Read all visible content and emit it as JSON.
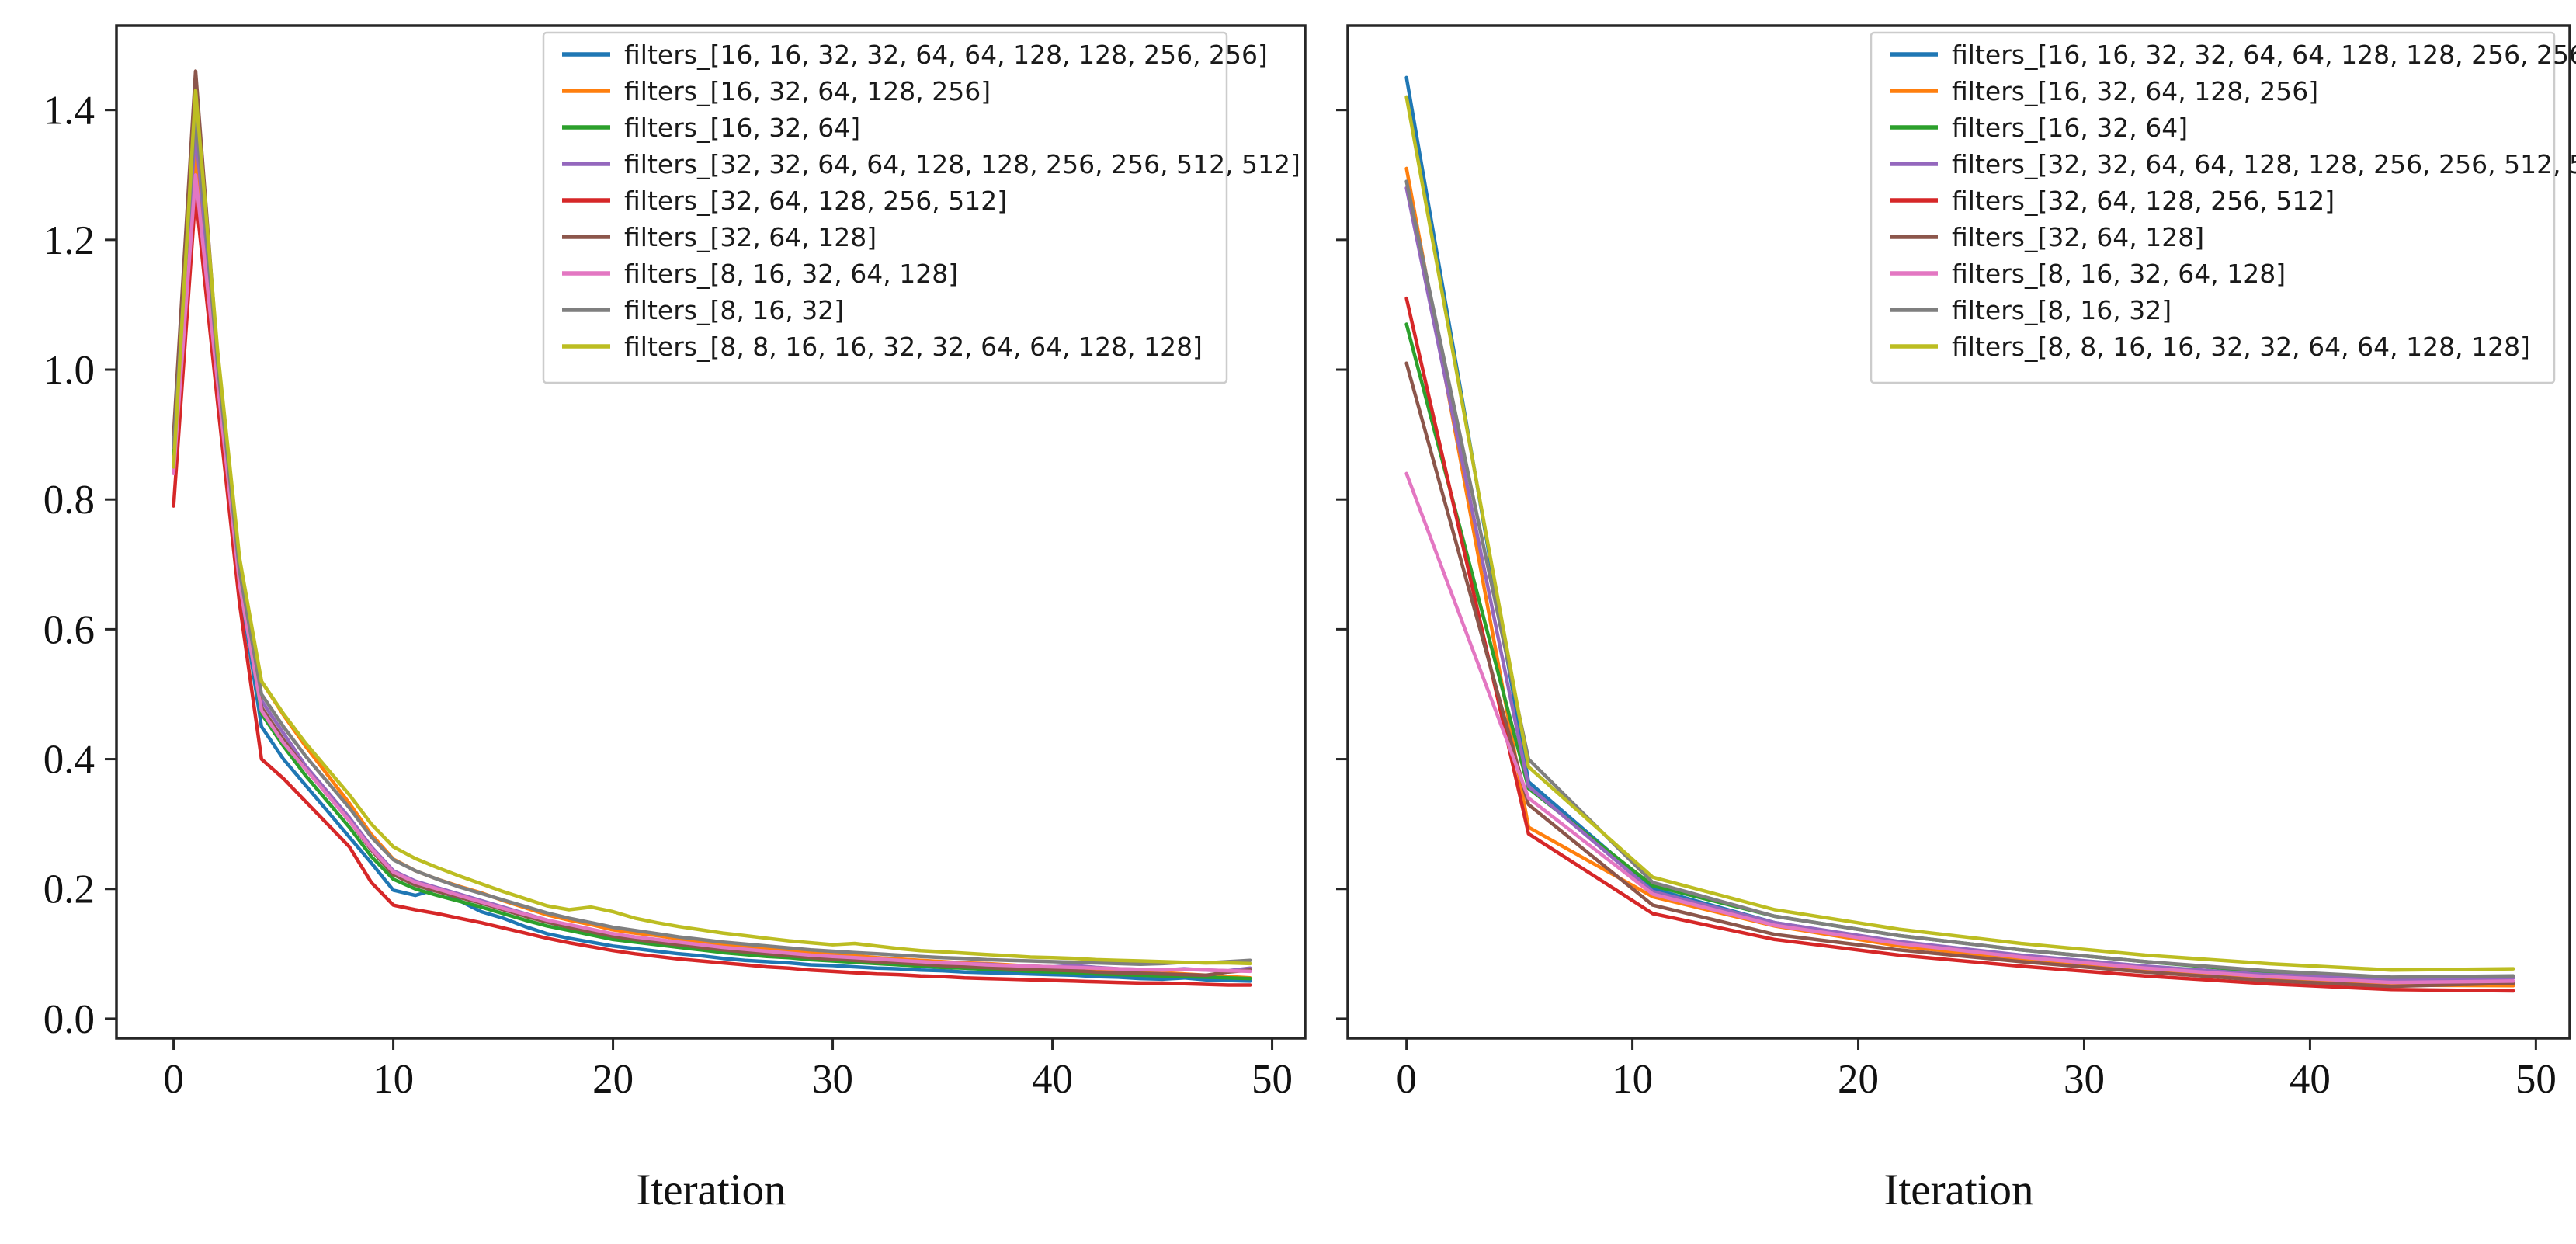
{
  "chart_data": {
    "type": "line",
    "title": "",
    "xlabel": "Iteration",
    "ylabel": "",
    "xlim": [
      -2.6,
      51.5
    ],
    "ylim": [
      -0.03,
      1.53
    ],
    "grid": false,
    "x_ticks": [
      0,
      10,
      20,
      30,
      40,
      50
    ],
    "y_ticks": [
      0.0,
      0.2,
      0.4,
      0.6,
      0.8,
      1.0,
      1.2,
      1.4
    ],
    "y_tick_labels": [
      "0.0",
      "0.2",
      "0.4",
      "0.6",
      "0.8",
      "1.0",
      "1.2",
      "1.4"
    ],
    "legend": {
      "position": "upper right",
      "labels": [
        "filters_[16, 16, 32, 32, 64, 64, 128, 128, 256, 256]",
        "filters_[16, 32, 64, 128, 256]",
        "filters_[16, 32, 64]",
        "filters_[32, 32, 64, 64, 128, 128, 256, 256, 512, 512]",
        "filters_[32, 64, 128, 256, 512]",
        "filters_[32, 64, 128]",
        "filters_[8, 16, 32, 64, 128]",
        "filters_[8, 16, 32]",
        "filters_[8, 8, 16, 16, 32, 32, 64, 64, 128, 128]"
      ],
      "colors": [
        "#1f77b4",
        "#ff7f0e",
        "#2ca02c",
        "#9467bd",
        "#d62728",
        "#8c564b",
        "#e377c2",
        "#7f7f7f",
        "#bcbd22"
      ]
    },
    "panels": [
      {
        "name": "left",
        "x": [
          0,
          1,
          2,
          3,
          4,
          5,
          6,
          7,
          8,
          9,
          10,
          11,
          12,
          13,
          14,
          15,
          16,
          17,
          18,
          19,
          20,
          21,
          22,
          23,
          24,
          25,
          26,
          27,
          28,
          29,
          30,
          31,
          32,
          33,
          34,
          35,
          36,
          37,
          38,
          39,
          40,
          41,
          42,
          43,
          44,
          45,
          46,
          47,
          48,
          49
        ],
        "series": [
          {
            "legend_index": 0,
            "values": [
              0.88,
              1.4,
              0.99,
              0.67,
              0.45,
              0.4,
              0.36,
              0.32,
              0.28,
              0.24,
              0.198,
              0.19,
              0.2,
              0.182,
              0.165,
              0.155,
              0.142,
              0.131,
              0.124,
              0.118,
              0.112,
              0.108,
              0.104,
              0.1,
              0.097,
              0.093,
              0.09,
              0.088,
              0.086,
              0.083,
              0.082,
              0.08,
              0.078,
              0.077,
              0.075,
              0.074,
              0.072,
              0.071,
              0.07,
              0.069,
              0.068,
              0.067,
              0.065,
              0.064,
              0.062,
              0.061,
              0.063,
              0.06,
              0.059,
              0.058
            ]
          },
          {
            "legend_index": 1,
            "values": [
              0.86,
              1.33,
              1.01,
              0.7,
              0.52,
              0.468,
              0.42,
              0.376,
              0.332,
              0.284,
              0.246,
              0.228,
              0.215,
              0.204,
              0.194,
              0.182,
              0.171,
              0.16,
              0.152,
              0.145,
              0.137,
              0.132,
              0.128,
              0.123,
              0.119,
              0.114,
              0.111,
              0.108,
              0.104,
              0.101,
              0.099,
              0.097,
              0.094,
              0.092,
              0.09,
              0.088,
              0.086,
              0.085,
              0.083,
              0.081,
              0.08,
              0.078,
              0.077,
              0.075,
              0.073,
              0.071,
              0.069,
              0.067,
              0.065,
              0.063
            ]
          },
          {
            "legend_index": 2,
            "values": [
              0.87,
              1.38,
              1.0,
              0.68,
              0.47,
              0.42,
              0.375,
              0.335,
              0.295,
              0.25,
              0.215,
              0.2,
              0.19,
              0.181,
              0.172,
              0.162,
              0.152,
              0.143,
              0.136,
              0.129,
              0.122,
              0.118,
              0.114,
              0.11,
              0.106,
              0.102,
              0.099,
              0.096,
              0.094,
              0.091,
              0.089,
              0.087,
              0.085,
              0.083,
              0.081,
              0.079,
              0.078,
              0.076,
              0.075,
              0.073,
              0.072,
              0.071,
              0.069,
              0.068,
              0.067,
              0.066,
              0.065,
              0.064,
              0.063,
              0.062
            ]
          },
          {
            "legend_index": 3,
            "values": [
              0.89,
              1.37,
              1.0,
              0.69,
              0.49,
              0.44,
              0.39,
              0.35,
              0.31,
              0.265,
              0.228,
              0.212,
              0.202,
              0.192,
              0.182,
              0.172,
              0.162,
              0.152,
              0.144,
              0.137,
              0.13,
              0.125,
              0.121,
              0.117,
              0.113,
              0.109,
              0.106,
              0.103,
              0.1,
              0.097,
              0.095,
              0.093,
              0.091,
              0.089,
              0.088,
              0.086,
              0.085,
              0.084,
              0.082,
              0.081,
              0.08,
              0.082,
              0.079,
              0.077,
              0.076,
              0.075,
              0.077,
              0.075,
              0.074,
              0.078
            ]
          },
          {
            "legend_index": 4,
            "values": [
              0.79,
              1.27,
              0.95,
              0.64,
              0.4,
              0.37,
              0.335,
              0.3,
              0.265,
              0.21,
              0.175,
              0.168,
              0.162,
              0.155,
              0.148,
              0.14,
              0.132,
              0.124,
              0.117,
              0.111,
              0.105,
              0.1,
              0.096,
              0.092,
              0.089,
              0.086,
              0.083,
              0.08,
              0.078,
              0.075,
              0.073,
              0.071,
              0.069,
              0.068,
              0.066,
              0.065,
              0.063,
              0.062,
              0.061,
              0.06,
              0.059,
              0.058,
              0.057,
              0.056,
              0.055,
              0.055,
              0.054,
              0.053,
              0.052,
              0.052
            ]
          },
          {
            "legend_index": 5,
            "values": [
              0.9,
              1.46,
              1.02,
              0.7,
              0.48,
              0.43,
              0.385,
              0.345,
              0.305,
              0.26,
              0.222,
              0.206,
              0.196,
              0.187,
              0.178,
              0.168,
              0.158,
              0.149,
              0.141,
              0.134,
              0.127,
              0.122,
              0.118,
              0.114,
              0.11,
              0.106,
              0.103,
              0.1,
              0.097,
              0.094,
              0.092,
              0.09,
              0.088,
              0.086,
              0.084,
              0.082,
              0.08,
              0.079,
              0.077,
              0.076,
              0.075,
              0.074,
              0.072,
              0.071,
              0.07,
              0.069,
              0.068,
              0.067,
              0.072,
              0.075
            ]
          },
          {
            "legend_index": 6,
            "values": [
              0.84,
              1.3,
              0.98,
              0.67,
              0.475,
              0.425,
              0.385,
              0.345,
              0.305,
              0.262,
              0.226,
              0.21,
              0.2,
              0.19,
              0.18,
              0.17,
              0.161,
              0.152,
              0.145,
              0.138,
              0.131,
              0.126,
              0.122,
              0.118,
              0.114,
              0.11,
              0.107,
              0.104,
              0.101,
              0.098,
              0.096,
              0.094,
              0.092,
              0.09,
              0.088,
              0.086,
              0.085,
              0.083,
              0.082,
              0.081,
              0.08,
              0.079,
              0.078,
              0.077,
              0.076,
              0.075,
              0.076,
              0.075,
              0.074,
              0.073
            ]
          },
          {
            "legend_index": 7,
            "values": [
              0.88,
              1.4,
              1.01,
              0.69,
              0.5,
              0.45,
              0.405,
              0.365,
              0.325,
              0.28,
              0.245,
              0.228,
              0.215,
              0.203,
              0.193,
              0.183,
              0.173,
              0.163,
              0.155,
              0.148,
              0.141,
              0.136,
              0.131,
              0.126,
              0.122,
              0.118,
              0.115,
              0.112,
              0.109,
              0.106,
              0.104,
              0.102,
              0.1,
              0.098,
              0.096,
              0.094,
              0.093,
              0.091,
              0.09,
              0.089,
              0.088,
              0.087,
              0.086,
              0.085,
              0.084,
              0.085,
              0.087,
              0.086,
              0.088,
              0.09
            ]
          },
          {
            "legend_index": 8,
            "values": [
              0.85,
              1.43,
              1.03,
              0.71,
              0.52,
              0.47,
              0.425,
              0.385,
              0.345,
              0.3,
              0.265,
              0.247,
              0.233,
              0.22,
              0.208,
              0.196,
              0.185,
              0.174,
              0.168,
              0.172,
              0.165,
              0.155,
              0.148,
              0.142,
              0.137,
              0.132,
              0.128,
              0.124,
              0.12,
              0.117,
              0.114,
              0.116,
              0.112,
              0.108,
              0.105,
              0.103,
              0.101,
              0.099,
              0.097,
              0.095,
              0.094,
              0.093,
              0.091,
              0.09,
              0.089,
              0.088,
              0.087,
              0.086,
              0.086,
              0.085
            ]
          }
        ]
      },
      {
        "name": "right",
        "x": [
          0,
          5.4,
          10.9,
          16.3,
          21.8,
          27.2,
          32.7,
          38.1,
          43.6,
          49
        ],
        "series": [
          {
            "legend_index": 0,
            "values": [
              1.45,
              0.365,
              0.2,
              0.148,
              0.118,
              0.097,
              0.078,
              0.064,
              0.054,
              0.052
            ]
          },
          {
            "legend_index": 1,
            "values": [
              1.31,
              0.295,
              0.188,
              0.143,
              0.112,
              0.092,
              0.074,
              0.061,
              0.052,
              0.051
            ]
          },
          {
            "legend_index": 2,
            "values": [
              1.07,
              0.355,
              0.205,
              0.158,
              0.128,
              0.106,
              0.088,
              0.072,
              0.06,
              0.057
            ]
          },
          {
            "legend_index": 3,
            "values": [
              1.28,
              0.358,
              0.196,
              0.148,
              0.119,
              0.098,
              0.081,
              0.068,
              0.061,
              0.063
            ]
          },
          {
            "legend_index": 4,
            "values": [
              1.11,
              0.285,
              0.162,
              0.122,
              0.098,
              0.081,
              0.066,
              0.054,
              0.045,
              0.043
            ]
          },
          {
            "legend_index": 5,
            "values": [
              1.01,
              0.33,
              0.175,
              0.13,
              0.106,
              0.088,
              0.072,
              0.059,
              0.05,
              0.055
            ]
          },
          {
            "legend_index": 6,
            "values": [
              0.84,
              0.34,
              0.192,
              0.144,
              0.116,
              0.095,
              0.078,
              0.065,
              0.056,
              0.058
            ]
          },
          {
            "legend_index": 7,
            "values": [
              1.29,
              0.4,
              0.21,
              0.158,
              0.128,
              0.106,
              0.088,
              0.074,
              0.064,
              0.066
            ]
          },
          {
            "legend_index": 8,
            "values": [
              1.42,
              0.388,
              0.218,
              0.168,
              0.138,
              0.116,
              0.098,
              0.085,
              0.075,
              0.077
            ]
          }
        ]
      }
    ]
  }
}
